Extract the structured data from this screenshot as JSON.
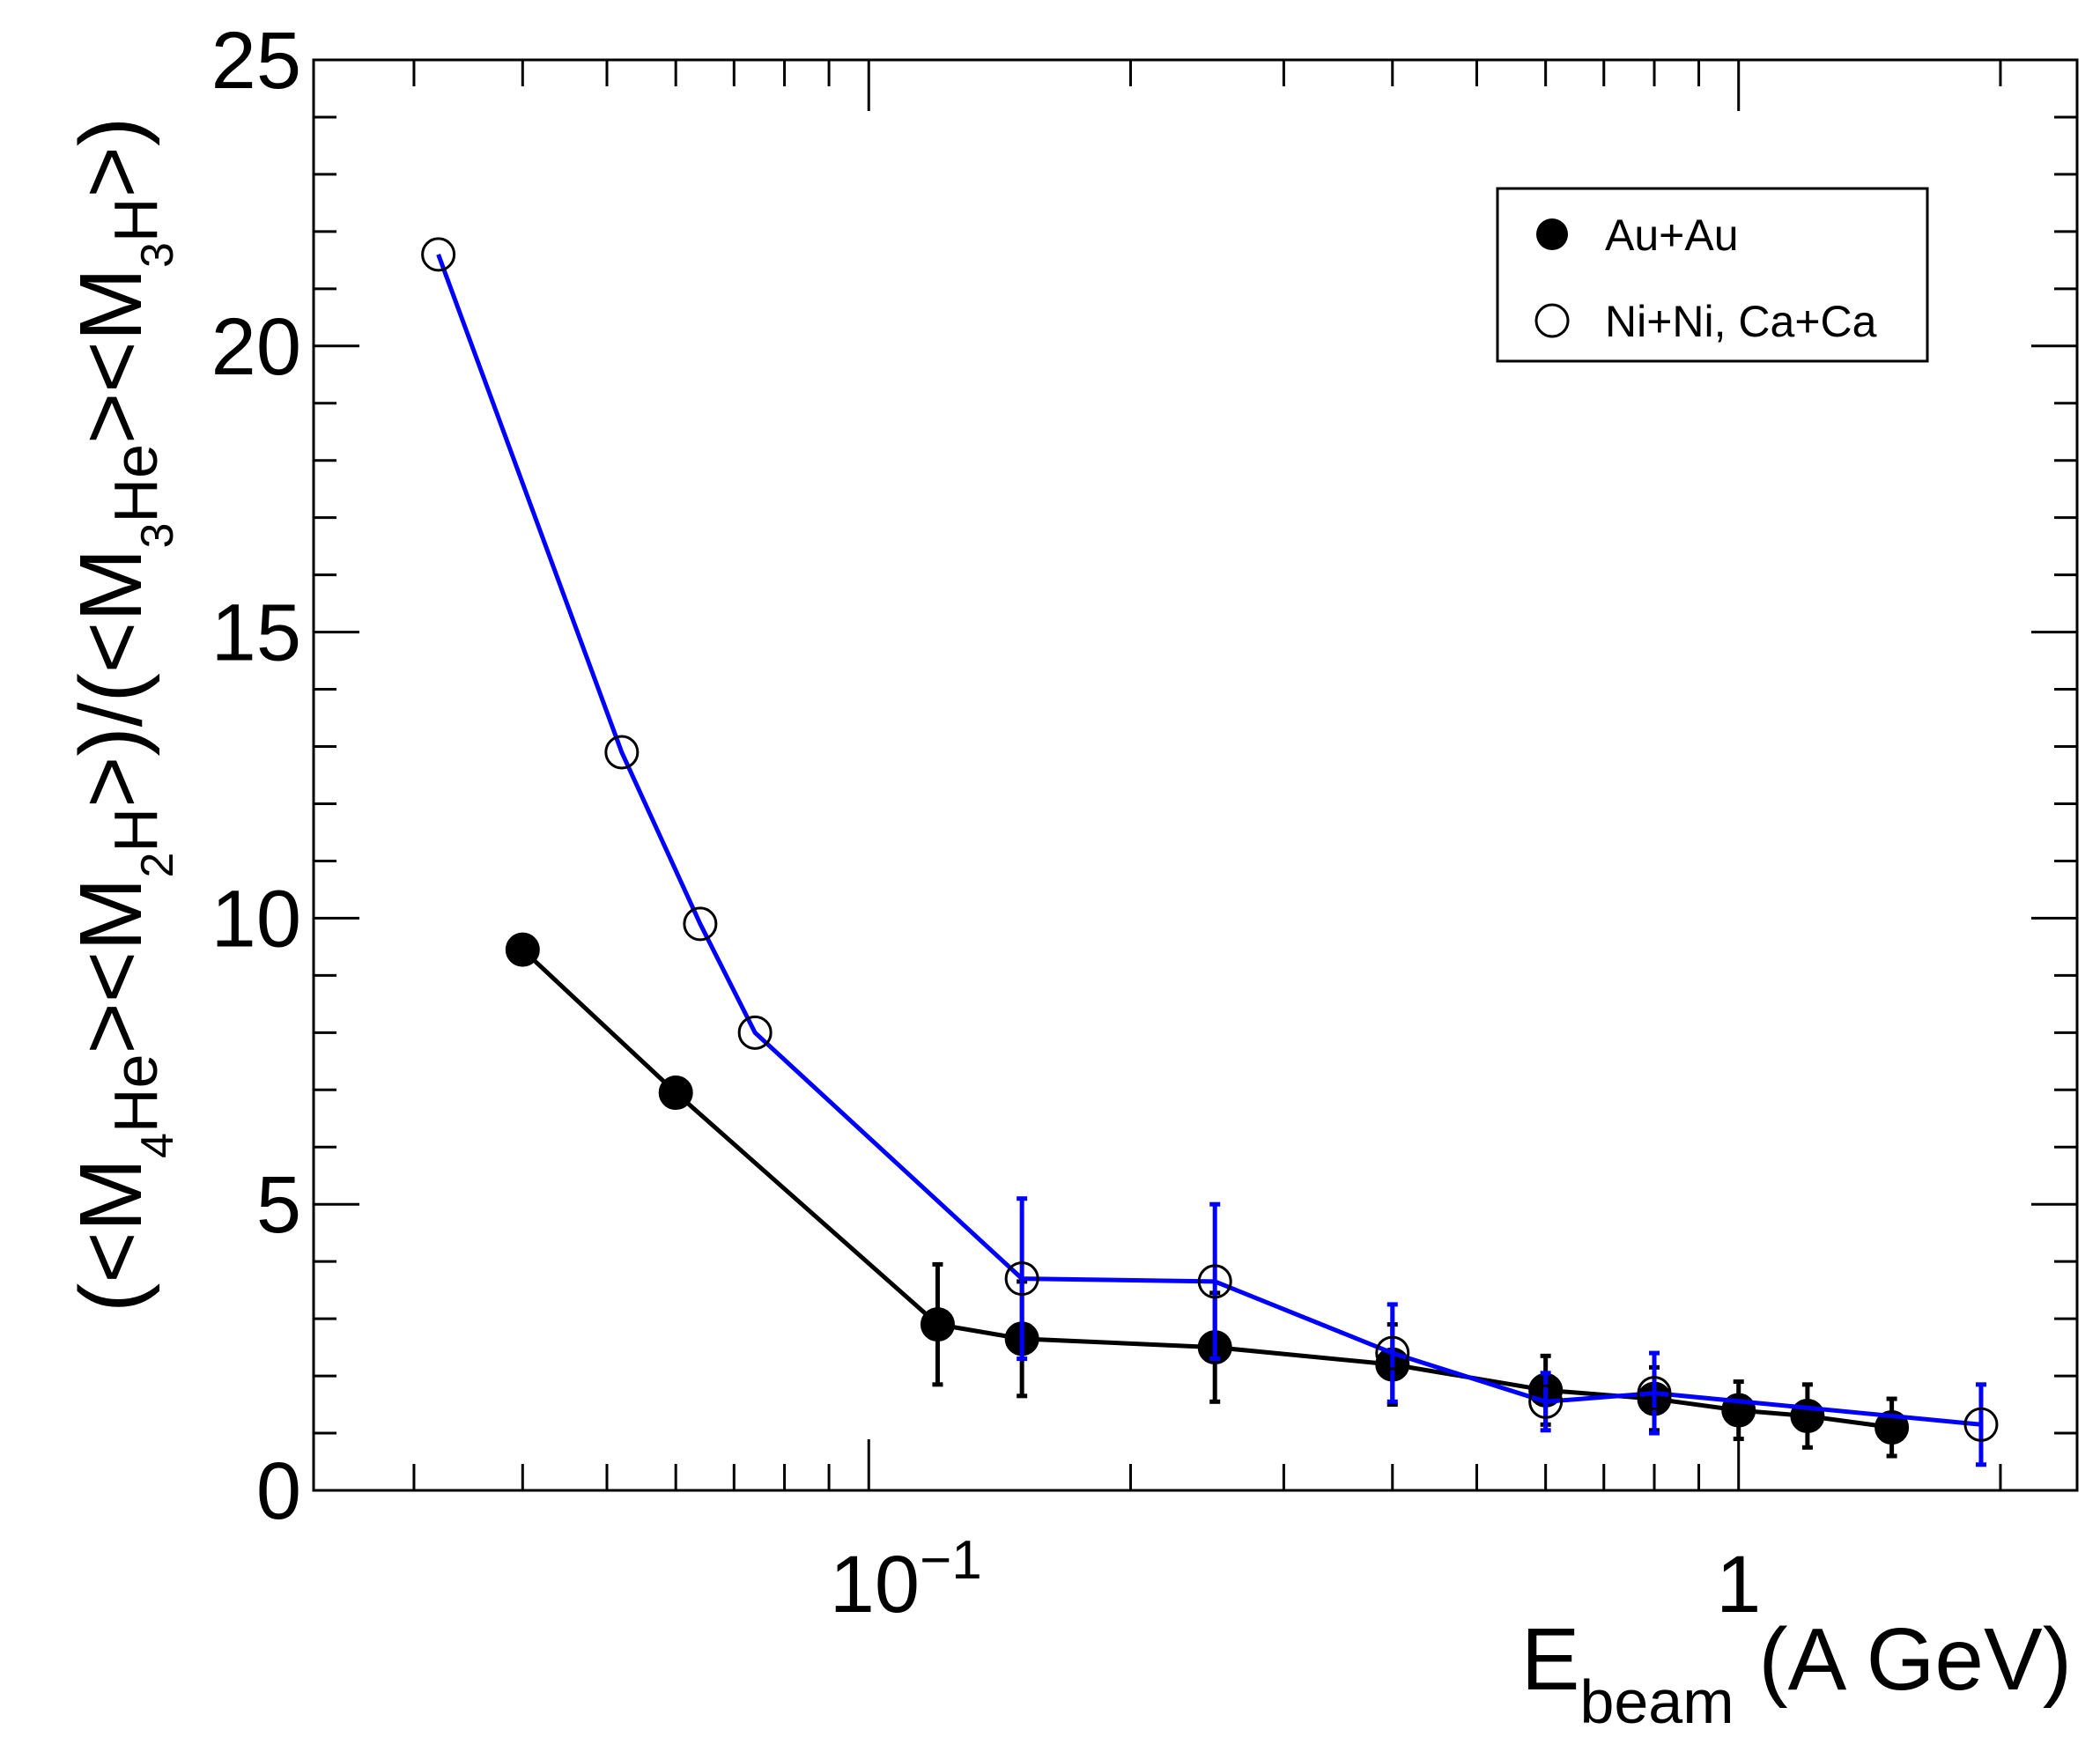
{
  "chart_data": {
    "type": "line",
    "title": "",
    "x_scale": "log",
    "xlim": [
      0.023,
      2.45
    ],
    "ylim": [
      0,
      25
    ],
    "xlabel": {
      "main": "E",
      "sub": "beam",
      "suffix": " (A GeV)"
    },
    "ylabel": {
      "p1": "(<M",
      "s1": "4",
      "e1": "He",
      "p2": "><M",
      "s2": "2",
      "e2": "H",
      "p3": ">)/(<M",
      "s3": "3",
      "e3": "He",
      "p4": "><M",
      "s4": "3",
      "e4": "H",
      "p5": ">)"
    },
    "x_ticks": [
      {
        "value": 0.1,
        "base": "10",
        "exp": "−1"
      },
      {
        "value": 1,
        "base": "1",
        "exp": ""
      }
    ],
    "y_ticks": [
      0,
      5,
      10,
      15,
      20,
      25
    ],
    "legend": {
      "position": "top-right"
    },
    "series": [
      {
        "name": "Au+Au",
        "marker": "filled-circle",
        "color": "#000000",
        "points": [
          {
            "x": 0.04,
            "y": 9.45,
            "err": 0
          },
          {
            "x": 0.06,
            "y": 6.95,
            "err": 0
          },
          {
            "x": 0.12,
            "y": 2.9,
            "err": 1.05
          },
          {
            "x": 0.15,
            "y": 2.65,
            "err": 1.0
          },
          {
            "x": 0.25,
            "y": 2.5,
            "err": 0.95
          },
          {
            "x": 0.4,
            "y": 2.2,
            "err": 0.7
          },
          {
            "x": 0.6,
            "y": 1.75,
            "err": 0.6
          },
          {
            "x": 0.8,
            "y": 1.6,
            "err": 0.55
          },
          {
            "x": 1.0,
            "y": 1.4,
            "err": 0.5
          },
          {
            "x": 1.2,
            "y": 1.3,
            "err": 0.55
          },
          {
            "x": 1.5,
            "y": 1.1,
            "err": 0.5
          }
        ]
      },
      {
        "name": "Ni+Ni, Ca+Ca",
        "marker": "open-circle",
        "color": "#0000ff",
        "points": [
          {
            "x": 0.032,
            "y": 21.6,
            "err": 0
          },
          {
            "x": 0.052,
            "y": 12.9,
            "err": 0
          },
          {
            "x": 0.064,
            "y": 9.9,
            "err": 0
          },
          {
            "x": 0.074,
            "y": 8.0,
            "err": 0
          },
          {
            "x": 0.15,
            "y": 3.7,
            "err": 1.4
          },
          {
            "x": 0.25,
            "y": 3.65,
            "err": 1.35
          },
          {
            "x": 0.4,
            "y": 2.4,
            "err": 0.85
          },
          {
            "x": 0.6,
            "y": 1.55,
            "err": 0.5
          },
          {
            "x": 0.8,
            "y": 1.7,
            "err": 0.7
          },
          {
            "x": 1.9,
            "y": 1.15,
            "err": 0.7
          }
        ]
      }
    ]
  }
}
